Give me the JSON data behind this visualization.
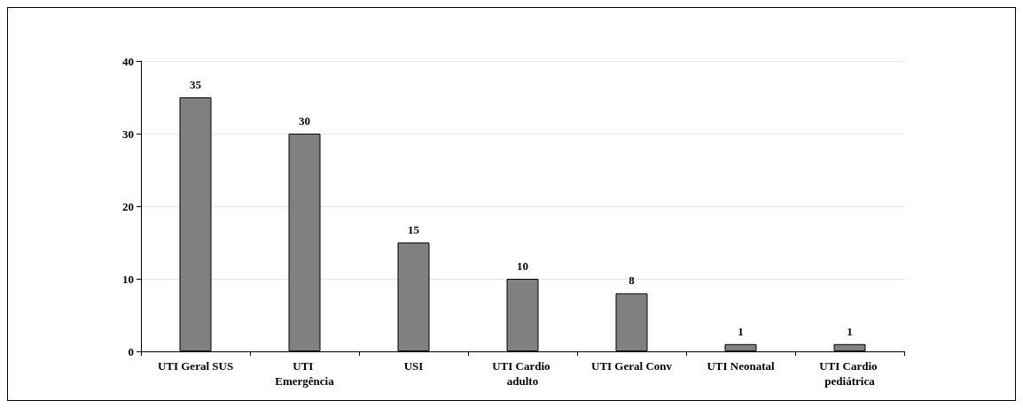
{
  "chart_data": {
    "type": "bar",
    "categories": [
      "UTI Geral SUS",
      "UTI Emergência",
      "USI",
      "UTI Cardio adulto",
      "UTI Geral Conv",
      "UTI Neonatal",
      "UTI Cardio pediátrica"
    ],
    "values": [
      35,
      30,
      15,
      10,
      8,
      1,
      1
    ],
    "color": "#808080",
    "ylim": [
      0,
      40
    ],
    "yticks": [
      0,
      10,
      20,
      30,
      40
    ],
    "grid": "y",
    "data_labels": true
  }
}
